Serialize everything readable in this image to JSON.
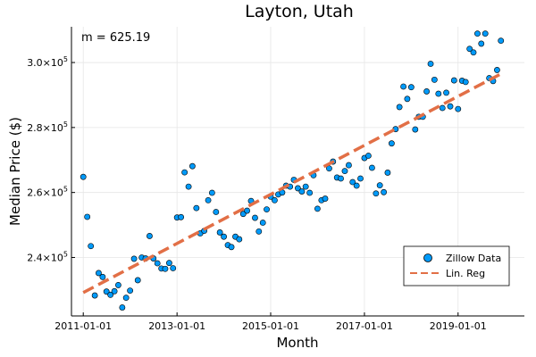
{
  "chart_data": {
    "type": "scatter",
    "title": "Layton, Utah",
    "xlabel": "Month",
    "ylabel": "Median Price ($)",
    "annotation": "m = 625.19",
    "x_ticks": [
      "2011-01-01",
      "2013-01-01",
      "2015-01-01",
      "2017-01-01",
      "2019-01-01"
    ],
    "y_ticks": [
      {
        "value": 240000,
        "mantissa": "2.4",
        "base": "10",
        "exp": "5"
      },
      {
        "value": 260000,
        "mantissa": "2.6",
        "base": "10",
        "exp": "5"
      },
      {
        "value": 280000,
        "mantissa": "2.8",
        "base": "10",
        "exp": "5"
      },
      {
        "value": 300000,
        "mantissa": "3.0",
        "base": "10",
        "exp": "5"
      }
    ],
    "xlim": [
      "2010-10-01",
      "2020-06-01"
    ],
    "ylim": [
      222000,
      311000
    ],
    "grid": true,
    "legend_position": "bottom-right",
    "series": [
      {
        "name": "Zillow Data",
        "kind": "scatter",
        "color": "#009af9",
        "points": [
          [
            "2011-01-01",
            264800
          ],
          [
            "2011-02-01",
            252500
          ],
          [
            "2011-03-01",
            243500
          ],
          [
            "2011-04-01",
            228300
          ],
          [
            "2011-05-01",
            235200
          ],
          [
            "2011-06-01",
            234000
          ],
          [
            "2011-07-01",
            229500
          ],
          [
            "2011-08-01",
            228500
          ],
          [
            "2011-09-01",
            229600
          ],
          [
            "2011-10-01",
            231500
          ],
          [
            "2011-11-01",
            224600
          ],
          [
            "2011-12-01",
            227600
          ],
          [
            "2012-01-01",
            229800
          ],
          [
            "2012-02-01",
            239600
          ],
          [
            "2012-03-01",
            233000
          ],
          [
            "2012-04-01",
            240000
          ],
          [
            "2012-05-01",
            239700
          ],
          [
            "2012-06-01",
            246600
          ],
          [
            "2012-07-01",
            239700
          ],
          [
            "2012-08-01",
            238200
          ],
          [
            "2012-09-01",
            236600
          ],
          [
            "2012-10-01",
            236500
          ],
          [
            "2012-11-01",
            238300
          ],
          [
            "2012-12-01",
            236700
          ],
          [
            "2013-01-01",
            252300
          ],
          [
            "2013-02-01",
            252400
          ],
          [
            "2013-03-01",
            266200
          ],
          [
            "2013-04-01",
            261800
          ],
          [
            "2013-05-01",
            268100
          ],
          [
            "2013-06-01",
            255200
          ],
          [
            "2013-07-01",
            247400
          ],
          [
            "2013-08-01",
            248200
          ],
          [
            "2013-09-01",
            257600
          ],
          [
            "2013-10-01",
            259900
          ],
          [
            "2013-11-01",
            254000
          ],
          [
            "2013-12-01",
            247700
          ],
          [
            "2014-01-01",
            246400
          ],
          [
            "2014-02-01",
            243800
          ],
          [
            "2014-03-01",
            243200
          ],
          [
            "2014-04-01",
            246400
          ],
          [
            "2014-05-01",
            245600
          ],
          [
            "2014-06-01",
            253400
          ],
          [
            "2014-07-01",
            254400
          ],
          [
            "2014-08-01",
            257400
          ],
          [
            "2014-09-01",
            252200
          ],
          [
            "2014-10-01",
            248000
          ],
          [
            "2014-11-01",
            250700
          ],
          [
            "2014-12-01",
            254800
          ],
          [
            "2015-01-01",
            258700
          ],
          [
            "2015-02-01",
            257600
          ],
          [
            "2015-03-01",
            259400
          ],
          [
            "2015-04-01",
            260000
          ],
          [
            "2015-05-01",
            262100
          ],
          [
            "2015-06-01",
            261800
          ],
          [
            "2015-07-01",
            263900
          ],
          [
            "2015-08-01",
            261300
          ],
          [
            "2015-09-01",
            260300
          ],
          [
            "2015-10-01",
            261800
          ],
          [
            "2015-11-01",
            259900
          ],
          [
            "2015-12-01",
            265300
          ],
          [
            "2016-01-01",
            255000
          ],
          [
            "2016-02-01",
            257600
          ],
          [
            "2016-03-01",
            258100
          ],
          [
            "2016-04-01",
            267400
          ],
          [
            "2016-05-01",
            269500
          ],
          [
            "2016-06-01",
            264600
          ],
          [
            "2016-07-01",
            264300
          ],
          [
            "2016-08-01",
            266600
          ],
          [
            "2016-09-01",
            268400
          ],
          [
            "2016-10-01",
            263200
          ],
          [
            "2016-11-01",
            262100
          ],
          [
            "2016-12-01",
            264300
          ],
          [
            "2017-01-01",
            270600
          ],
          [
            "2017-02-01",
            271300
          ],
          [
            "2017-03-01",
            267600
          ],
          [
            "2017-04-01",
            259700
          ],
          [
            "2017-05-01",
            262200
          ],
          [
            "2017-06-01",
            260100
          ],
          [
            "2017-07-01",
            266100
          ],
          [
            "2017-08-01",
            275100
          ],
          [
            "2017-09-01",
            279500
          ],
          [
            "2017-10-01",
            286300
          ],
          [
            "2017-11-01",
            292600
          ],
          [
            "2017-12-01",
            288800
          ],
          [
            "2018-01-01",
            292400
          ],
          [
            "2018-02-01",
            279400
          ],
          [
            "2018-03-01",
            283300
          ],
          [
            "2018-04-01",
            283300
          ],
          [
            "2018-05-01",
            291100
          ],
          [
            "2018-06-01",
            299600
          ],
          [
            "2018-07-01",
            294700
          ],
          [
            "2018-08-01",
            290400
          ],
          [
            "2018-09-01",
            286000
          ],
          [
            "2018-10-01",
            290700
          ],
          [
            "2018-11-01",
            286500
          ],
          [
            "2018-12-01",
            294500
          ],
          [
            "2019-01-01",
            285700
          ],
          [
            "2019-02-01",
            294400
          ],
          [
            "2019-03-01",
            294000
          ],
          [
            "2019-04-01",
            304200
          ],
          [
            "2019-05-01",
            303100
          ],
          [
            "2019-06-01",
            308900
          ],
          [
            "2019-07-01",
            305800
          ],
          [
            "2019-08-01",
            308900
          ],
          [
            "2019-09-01",
            295200
          ],
          [
            "2019-10-01",
            294300
          ],
          [
            "2019-11-01",
            297700
          ],
          [
            "2019-12-01",
            306700
          ]
        ]
      },
      {
        "name": "Lin. Reg",
        "kind": "line",
        "color": "#e26f46",
        "points": [
          [
            "2011-01-01",
            229200
          ],
          [
            "2019-12-01",
            296500
          ]
        ]
      }
    ]
  }
}
